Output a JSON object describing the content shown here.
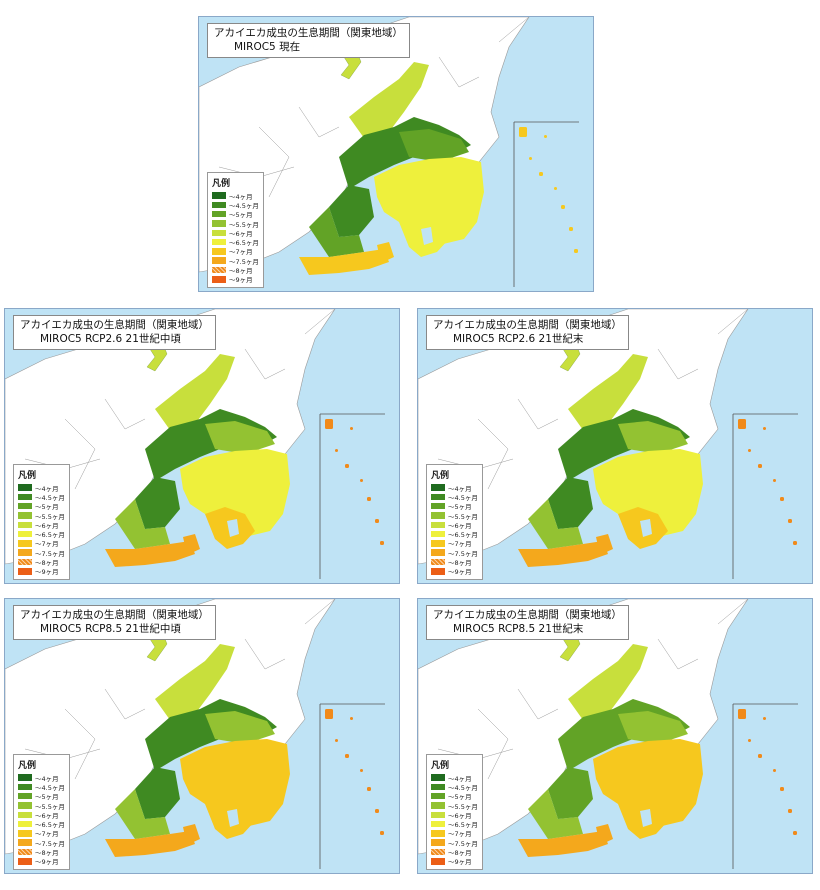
{
  "panels": [
    {
      "id": "p1",
      "title": "アカイエカ成虫の生息期間（関東地域）",
      "subtitle": "MIROC5 現在",
      "tone": 0
    },
    {
      "id": "p2",
      "title": "アカイエカ成虫の生息期間（関東地域）",
      "subtitle": "MIROC5 RCP2.6 21世紀中頃",
      "tone": 1
    },
    {
      "id": "p3",
      "title": "アカイエカ成虫の生息期間（関東地域）",
      "subtitle": "MIROC5 RCP2.6 21世紀末",
      "tone": 1
    },
    {
      "id": "p4",
      "title": "アカイエカ成虫の生息期間（関東地域）",
      "subtitle": "MIROC5 RCP8.5 21世紀中頃",
      "tone": 2
    },
    {
      "id": "p5",
      "title": "アカイエカ成虫の生息期間（関東地域）",
      "subtitle": "MIROC5 RCP8.5 21世紀末",
      "tone": 3
    }
  ],
  "legend": {
    "title": "凡例",
    "items": [
      {
        "label": "～4ヶ月",
        "color": "#1f6b1f"
      },
      {
        "label": "～4.5ヶ月",
        "color": "#3f8a22"
      },
      {
        "label": "～5ヶ月",
        "color": "#62a326"
      },
      {
        "label": "～5.5ヶ月",
        "color": "#93c232"
      },
      {
        "label": "～6ヶ月",
        "color": "#c8df3c"
      },
      {
        "label": "～6.5ヶ月",
        "color": "#eef03c"
      },
      {
        "label": "～7ヶ月",
        "color": "#f6c81e"
      },
      {
        "label": "～7.5ヶ月",
        "color": "#f4a81c"
      },
      {
        "label": "～8ヶ月",
        "color": "#f08a1a",
        "hatch": true
      },
      {
        "label": "～9ヶ月",
        "color": "#ec5e16"
      }
    ]
  },
  "colors": {
    "sea": "#bfe3f5",
    "land": "#ffffff",
    "border": "#9a9a9a"
  }
}
